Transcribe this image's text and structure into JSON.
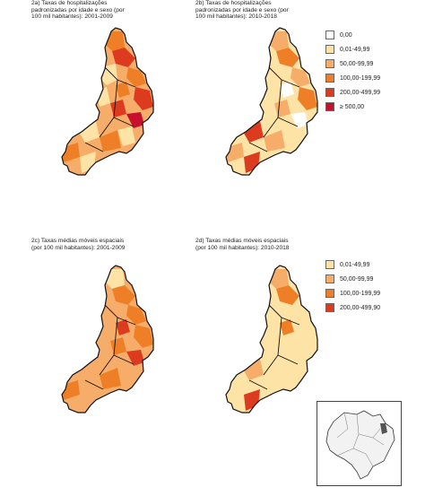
{
  "panels": [
    {
      "id": "2a",
      "title": "2a) Taxas de hospitalizações\npadronizadas por idade e sexo (por\n100 mil habitantes): 2001-2009"
    },
    {
      "id": "2b",
      "title": "2b) Taxas de hospitalizações\npadronizadas por idade e sexo (por\n100 mil habitantes): 2010-2018"
    },
    {
      "id": "2c",
      "title": "2c) Taxas médias móveis espaciais\n(por 100 mil habitantes): 2001-2009"
    },
    {
      "id": "2d",
      "title": "2d) Taxas médias móveis espaciais\n(por 100 mil habitantes): 2010-2018"
    }
  ],
  "legend_top": {
    "items": [
      {
        "label": "0,00",
        "color": "#ffffff"
      },
      {
        "label": "0,01-49,99",
        "color": "#fde3a5"
      },
      {
        "label": "50,00-99,99",
        "color": "#f7ad6a"
      },
      {
        "label": "100,00-199,99",
        "color": "#ef7f27"
      },
      {
        "label": "200,00-499,99",
        "color": "#dd3b1f"
      },
      {
        "label": "≥ 500,00",
        "color": "#c8102e"
      }
    ]
  },
  "legend_bottom": {
    "items": [
      {
        "label": "0,01-49,99",
        "color": "#fde3a5"
      },
      {
        "label": "50,00-99,99",
        "color": "#f7ad6a"
      },
      {
        "label": "100,00-199,99",
        "color": "#ef7f27"
      },
      {
        "label": "200,00-499,90",
        "color": "#dd3b1f"
      }
    ]
  },
  "colors": {
    "border_region": "#111111",
    "border_muni": "#ffffff",
    "inset_highlight": "#555555"
  }
}
